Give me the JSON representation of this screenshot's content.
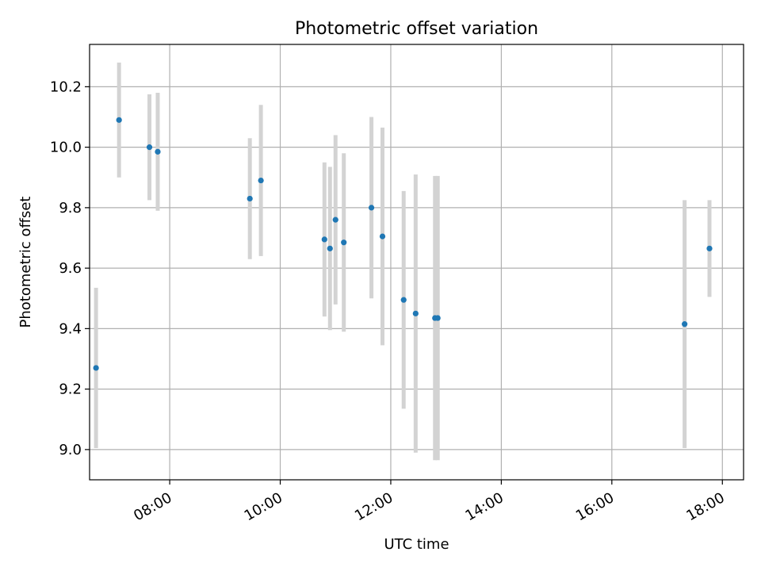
{
  "chart_data": {
    "type": "scatter",
    "title": "Photometric offset variation",
    "xlabel": "UTC time",
    "ylabel": "Photometric offset",
    "xlim": [
      "06:33",
      "18:23"
    ],
    "ylim": [
      8.9,
      10.34
    ],
    "x_ticks": [
      "08:00",
      "10:00",
      "12:00",
      "14:00",
      "16:00",
      "18:00"
    ],
    "y_ticks": [
      "9.0",
      "9.2",
      "9.4",
      "9.6",
      "9.8",
      "10.0",
      "10.2"
    ],
    "grid": true,
    "legend": "none",
    "colors": {
      "point": "#1f77b4",
      "errorbar": "#d3d3d3",
      "grid": "#b0b0b0"
    },
    "points": [
      {
        "time": "06:40",
        "y": 9.27,
        "err": 0.265
      },
      {
        "time": "07:05",
        "y": 10.09,
        "err": 0.19
      },
      {
        "time": "07:38",
        "y": 10.0,
        "err": 0.175
      },
      {
        "time": "07:47",
        "y": 9.985,
        "err": 0.195
      },
      {
        "time": "09:27",
        "y": 9.83,
        "err": 0.2
      },
      {
        "time": "09:39",
        "y": 9.89,
        "err": 0.25
      },
      {
        "time": "10:48",
        "y": 9.695,
        "err": 0.255
      },
      {
        "time": "10:54",
        "y": 9.665,
        "err": 0.27
      },
      {
        "time": "11:00",
        "y": 9.76,
        "err": 0.28
      },
      {
        "time": "11:09",
        "y": 9.685,
        "err": 0.295
      },
      {
        "time": "11:39",
        "y": 9.8,
        "err": 0.3
      },
      {
        "time": "11:51",
        "y": 9.705,
        "err": 0.36
      },
      {
        "time": "12:14",
        "y": 9.495,
        "err": 0.36
      },
      {
        "time": "12:27",
        "y": 9.45,
        "err": 0.46
      },
      {
        "time": "12:48",
        "y": 9.435,
        "err": 0.47
      },
      {
        "time": "12:51",
        "y": 9.435,
        "err": 0.47
      },
      {
        "time": "17:19",
        "y": 9.415,
        "err": 0.41
      },
      {
        "time": "17:46",
        "y": 9.665,
        "err": 0.16
      }
    ]
  }
}
